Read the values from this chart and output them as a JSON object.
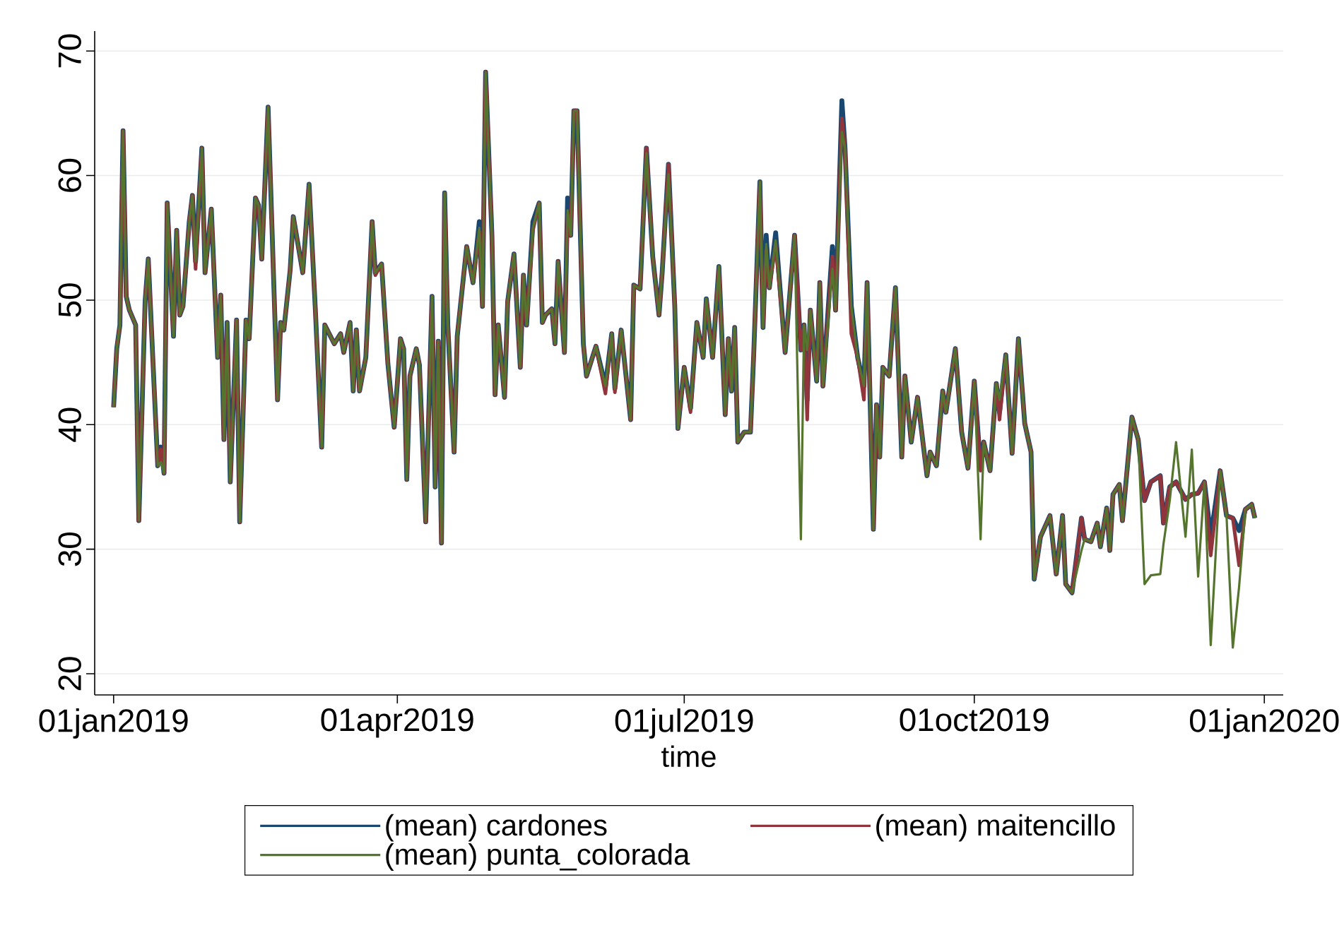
{
  "chart_data": {
    "type": "line",
    "xlabel": "time",
    "xlim": [
      "2018-12-26",
      "2020-01-07"
    ],
    "ylim": [
      18.3,
      71.6
    ],
    "xticks": [
      {
        "value": "2019-01-01",
        "label": "01jan2019"
      },
      {
        "value": "2019-04-01",
        "label": "01apr2019"
      },
      {
        "value": "2019-07-01",
        "label": "01jul2019"
      },
      {
        "value": "2019-10-01",
        "label": "01oct2019"
      },
      {
        "value": "2020-01-01",
        "label": "01jan2020"
      }
    ],
    "yticks": [
      20,
      30,
      40,
      50,
      60,
      70
    ],
    "grid": "y",
    "legend": "bottom",
    "x": [
      "2019-01-01",
      "2019-01-02",
      "2019-01-03",
      "2019-01-04",
      "2019-01-05",
      "2019-01-06",
      "2019-01-08",
      "2019-01-09",
      "2019-01-11",
      "2019-01-12",
      "2019-01-15",
      "2019-01-16",
      "2019-01-17",
      "2019-01-18",
      "2019-01-20",
      "2019-01-21",
      "2019-01-22",
      "2019-01-23",
      "2019-01-25",
      "2019-01-26",
      "2019-01-27",
      "2019-01-29",
      "2019-01-30",
      "2019-02-01",
      "2019-02-03",
      "2019-02-04",
      "2019-02-05",
      "2019-02-06",
      "2019-02-07",
      "2019-02-09",
      "2019-02-10",
      "2019-02-12",
      "2019-02-13",
      "2019-02-15",
      "2019-02-16",
      "2019-02-17",
      "2019-02-19",
      "2019-02-22",
      "2019-02-23",
      "2019-02-24",
      "2019-02-26",
      "2019-02-27",
      "2019-03-02",
      "2019-03-04",
      "2019-03-06",
      "2019-03-08",
      "2019-03-09",
      "2019-03-12",
      "2019-03-14",
      "2019-03-15",
      "2019-03-17",
      "2019-03-18",
      "2019-03-19",
      "2019-03-20",
      "2019-03-22",
      "2019-03-24",
      "2019-03-25",
      "2019-03-27",
      "2019-03-29",
      "2019-03-31",
      "2019-04-02",
      "2019-04-03",
      "2019-04-04",
      "2019-04-05",
      "2019-04-07",
      "2019-04-08",
      "2019-04-10",
      "2019-04-12",
      "2019-04-13",
      "2019-04-14",
      "2019-04-15",
      "2019-04-16",
      "2019-04-17",
      "2019-04-19",
      "2019-04-20",
      "2019-04-23",
      "2019-04-25",
      "2019-04-27",
      "2019-04-28",
      "2019-04-29",
      "2019-05-01",
      "2019-05-02",
      "2019-05-03",
      "2019-05-05",
      "2019-05-06",
      "2019-05-08",
      "2019-05-10",
      "2019-05-11",
      "2019-05-12",
      "2019-05-14",
      "2019-05-16",
      "2019-05-17",
      "2019-05-18",
      "2019-05-20",
      "2019-05-21",
      "2019-05-22",
      "2019-05-24",
      "2019-05-25",
      "2019-05-26",
      "2019-05-27",
      "2019-05-28",
      "2019-05-30",
      "2019-05-31",
      "2019-06-03",
      "2019-06-06",
      "2019-06-08",
      "2019-06-09",
      "2019-06-11",
      "2019-06-14",
      "2019-06-15",
      "2019-06-17",
      "2019-06-19",
      "2019-06-21",
      "2019-06-23",
      "2019-06-24",
      "2019-06-26",
      "2019-06-28",
      "2019-06-29",
      "2019-07-01",
      "2019-07-03",
      "2019-07-05",
      "2019-07-07",
      "2019-07-08",
      "2019-07-10",
      "2019-07-12",
      "2019-07-14",
      "2019-07-15",
      "2019-07-16",
      "2019-07-17",
      "2019-07-18",
      "2019-07-20",
      "2019-07-22",
      "2019-07-23",
      "2019-07-25",
      "2019-07-26",
      "2019-07-27",
      "2019-07-28",
      "2019-07-30",
      "2019-08-02",
      "2019-08-05",
      "2019-08-07",
      "2019-08-08",
      "2019-08-09",
      "2019-08-10",
      "2019-08-12",
      "2019-08-13",
      "2019-08-14",
      "2019-08-17",
      "2019-08-18",
      "2019-08-20",
      "2019-08-21",
      "2019-08-23",
      "2019-08-25",
      "2019-08-27",
      "2019-08-28",
      "2019-08-30",
      "2019-08-31",
      "2019-09-01",
      "2019-09-02",
      "2019-09-04",
      "2019-09-06",
      "2019-09-08",
      "2019-09-09",
      "2019-09-11",
      "2019-09-13",
      "2019-09-16",
      "2019-09-17",
      "2019-09-19",
      "2019-09-21",
      "2019-09-22",
      "2019-09-25",
      "2019-09-27",
      "2019-09-29",
      "2019-10-01",
      "2019-10-03",
      "2019-10-04",
      "2019-10-06",
      "2019-10-08",
      "2019-10-09",
      "2019-10-11",
      "2019-10-13",
      "2019-10-15",
      "2019-10-17",
      "2019-10-19",
      "2019-10-20",
      "2019-10-22",
      "2019-10-25",
      "2019-10-27",
      "2019-10-29",
      "2019-10-30",
      "2019-11-01",
      "2019-11-04",
      "2019-11-05",
      "2019-11-07",
      "2019-11-09",
      "2019-11-10",
      "2019-11-12",
      "2019-11-13",
      "2019-11-14",
      "2019-11-16",
      "2019-11-17",
      "2019-11-20",
      "2019-11-22",
      "2019-11-24",
      "2019-11-26",
      "2019-11-29",
      "2019-11-30",
      "2019-12-02",
      "2019-12-04",
      "2019-12-07",
      "2019-12-09",
      "2019-12-11",
      "2019-12-13",
      "2019-12-15",
      "2019-12-18",
      "2019-12-20",
      "2019-12-22",
      "2019-12-24",
      "2019-12-26",
      "2019-12-28",
      "2019-12-29"
    ],
    "series": [
      {
        "name": "(mean) cardones",
        "color": "#1a476f",
        "values": [
          41.4,
          46.1,
          48,
          63.6,
          50.3,
          49.2,
          48,
          32.3,
          49.9,
          53.3,
          36.7,
          38.2,
          36.1,
          57.8,
          47.1,
          55.6,
          48.8,
          49.5,
          56.3,
          58.4,
          53.1,
          62.2,
          52.2,
          57.3,
          45.4,
          50.4,
          38.8,
          48.2,
          35.4,
          48.4,
          32.2,
          48.4,
          46.9,
          58.2,
          57.6,
          53.3,
          65.5,
          42,
          48.2,
          47.6,
          52.4,
          56.7,
          52.2,
          59.3,
          49.2,
          38.2,
          48,
          46.5,
          47.3,
          45.8,
          48.2,
          42.7,
          47.6,
          42.7,
          45.4,
          56.3,
          52.2,
          52.9,
          44.9,
          39.8,
          46.9,
          46.1,
          35.6,
          43.9,
          46.1,
          44.8,
          32.2,
          50.3,
          35,
          46.7,
          30.5,
          58.6,
          48,
          37.8,
          47.1,
          54.3,
          51.4,
          56.3,
          49.5,
          68.3,
          55.2,
          42.4,
          48,
          42.2,
          49.9,
          53.7,
          44.6,
          52,
          48,
          56.3,
          57.8,
          48.2,
          48.8,
          49.3,
          46.5,
          53.1,
          45.8,
          58.2,
          55.2,
          65.2,
          65.2,
          46.5,
          43.9,
          46.3,
          43.1,
          47.3,
          42.9,
          47.6,
          40.4,
          51.2,
          50.9,
          62.2,
          53.5,
          48.8,
          52.2,
          60.9,
          49.5,
          39.7,
          44.6,
          41.3,
          48.2,
          45.4,
          50.1,
          45.4,
          52.7,
          40.8,
          46.9,
          42.7,
          47.8,
          38.6,
          39.4,
          39.4,
          45.4,
          59.5,
          47.8,
          55.2,
          51,
          55.4,
          45.8,
          55.2,
          46,
          48,
          42,
          49.2,
          43.5,
          51.4,
          43.1,
          54.3,
          49.2,
          66,
          62.2,
          49.5,
          45.4,
          43.1,
          51.4,
          31.6,
          41.6,
          37.4,
          44.6,
          43.9,
          51,
          37.4,
          43.9,
          38.6,
          42.2,
          35.9,
          37.8,
          36.7,
          42.7,
          41,
          46.1,
          39.4,
          36.5,
          43.5,
          36.5,
          38.6,
          36.3,
          43.3,
          41,
          45.6,
          37.7,
          46.9,
          40.1,
          37.8,
          27.6,
          31,
          32.7,
          28,
          32.7,
          27.2,
          26.5,
          32.5,
          30.8,
          30.6,
          32.1,
          30.2,
          33.3,
          29.9,
          34.4,
          35.2,
          32.3,
          40.6,
          38.8,
          33.9,
          35.4,
          35.9,
          32.1,
          35,
          35.4,
          34,
          34.4,
          34.5,
          35.4,
          31,
          36.3,
          32.7,
          32.5,
          31.5,
          33.2,
          33.6,
          32.5
        ]
      },
      {
        "name": "(mean) maitencillo",
        "color": "#90353b",
        "values": [
          41.4,
          46.1,
          48,
          63.6,
          50.3,
          49.2,
          48,
          32.3,
          49.9,
          53.3,
          36.7,
          38,
          36.1,
          57.8,
          47.1,
          55.6,
          48.8,
          49.5,
          56.3,
          58.4,
          52.5,
          62.2,
          52.2,
          57.3,
          45.4,
          50.4,
          38.8,
          48.2,
          35.4,
          48.4,
          32.2,
          48.4,
          46.9,
          58.2,
          57.6,
          53.3,
          65.5,
          42,
          48.2,
          47.6,
          52.4,
          56.7,
          52.2,
          59.3,
          49.2,
          38.2,
          48,
          46.5,
          47.3,
          45.8,
          48.2,
          42.7,
          47.6,
          42.7,
          45.4,
          56.3,
          52,
          52.9,
          44.9,
          39.8,
          46.9,
          46.1,
          35.6,
          43.9,
          46.1,
          44.8,
          32.2,
          50.3,
          35,
          46.7,
          30.5,
          58.6,
          48,
          37.8,
          47.1,
          54.3,
          51.4,
          55.5,
          49.5,
          68.3,
          55.2,
          42.4,
          48,
          42.2,
          49.9,
          53.7,
          44.6,
          52,
          48,
          55.6,
          57.8,
          48.2,
          48.8,
          49.3,
          46.5,
          53.1,
          45.8,
          56.8,
          55.2,
          65.2,
          65.2,
          46.5,
          43.9,
          46.3,
          42.5,
          47.3,
          42.6,
          47.6,
          40.4,
          51.2,
          50.9,
          62.2,
          53.5,
          48.8,
          52.2,
          60.9,
          49.5,
          39.7,
          44.6,
          41,
          48.2,
          45.4,
          50.1,
          45.4,
          52.7,
          40.8,
          46.9,
          42.7,
          47.8,
          38.6,
          39.4,
          39.4,
          45.4,
          59.5,
          47.8,
          54,
          51,
          54.5,
          45.8,
          55.2,
          46,
          48,
          40.4,
          49.2,
          43.5,
          51.4,
          43.1,
          53.5,
          49.2,
          64.6,
          62.2,
          47.3,
          45.4,
          42,
          51.4,
          31.6,
          41.6,
          37.4,
          44.6,
          43.9,
          51,
          37.4,
          43.9,
          38.6,
          42.2,
          35.9,
          37.8,
          36.7,
          42.7,
          41,
          46.1,
          39.4,
          36.5,
          43.5,
          36.3,
          38.6,
          36.3,
          43.3,
          40.4,
          45.6,
          37.7,
          46.9,
          40.1,
          37.8,
          27.6,
          31,
          32.7,
          28,
          32.7,
          27.2,
          26.5,
          32.5,
          30.8,
          30.6,
          32.1,
          30.2,
          33.3,
          29.9,
          34.4,
          35.2,
          32.3,
          40.6,
          38.8,
          33.9,
          35.4,
          35.9,
          32.1,
          35,
          35.4,
          34,
          34.4,
          34.5,
          35.4,
          29.5,
          36.3,
          32.7,
          32.5,
          28.7,
          33.2,
          33.6,
          32.5
        ]
      },
      {
        "name": "(mean) punta_colorada",
        "color": "#55752f",
        "values": [
          41.4,
          46.1,
          48,
          63.6,
          50.3,
          49.2,
          48,
          32.3,
          49.9,
          53.3,
          36.7,
          37,
          36.1,
          57.8,
          47.1,
          55.6,
          48.8,
          49.5,
          56.3,
          58.4,
          53.1,
          62.2,
          52.2,
          57.3,
          45.4,
          50.4,
          38.8,
          48.2,
          35.4,
          48.4,
          32.2,
          48.4,
          46.9,
          58.2,
          57.6,
          53.3,
          65.5,
          42,
          48.2,
          47.6,
          52.4,
          56.7,
          52.2,
          59.3,
          49.2,
          38.2,
          48,
          46.5,
          47.3,
          45.8,
          48.2,
          42.7,
          47.6,
          42.7,
          45.4,
          56.3,
          52.2,
          52.9,
          44.9,
          39.8,
          46.9,
          46.1,
          35.6,
          43.9,
          46.1,
          44.8,
          32.2,
          50.3,
          35,
          46.7,
          30.5,
          58.6,
          48,
          37.8,
          47.1,
          54.3,
          51.4,
          55.8,
          49.5,
          68.3,
          55.2,
          42.4,
          48,
          42.2,
          49.9,
          53.7,
          44.6,
          52,
          48,
          55.8,
          57.8,
          48.2,
          48.8,
          49.3,
          46.5,
          53.1,
          45.8,
          57.2,
          55.2,
          65.2,
          65.2,
          46.5,
          43.9,
          46.3,
          43.1,
          47.3,
          42.9,
          47.6,
          40.4,
          51.2,
          50.9,
          61.8,
          53.5,
          48.8,
          52.2,
          60.1,
          49.5,
          39.7,
          44.6,
          41.3,
          48.2,
          45.4,
          50.1,
          45.4,
          52.7,
          40.8,
          46.9,
          42.7,
          47.8,
          38.6,
          39.4,
          39.4,
          45.4,
          59.5,
          47.8,
          54.5,
          51,
          54.8,
          45.8,
          55.2,
          30.8,
          48,
          46,
          49.2,
          43.5,
          51.4,
          43.1,
          52.5,
          49.2,
          63.5,
          62.2,
          49.5,
          45.4,
          43.1,
          51.4,
          31.6,
          41.6,
          37.4,
          44.6,
          43.9,
          51,
          37.4,
          43.9,
          38.6,
          42.2,
          35.9,
          37.8,
          36.7,
          42.7,
          41,
          46.1,
          39.4,
          36.5,
          43.5,
          30.8,
          38.6,
          36.3,
          43.3,
          42,
          45.6,
          37.7,
          46.9,
          40.1,
          37.8,
          27.6,
          31,
          32.7,
          28,
          32.7,
          27.2,
          26.5,
          29.9,
          30.8,
          30.6,
          32.1,
          30.2,
          33.3,
          29.9,
          34.4,
          35.2,
          32.3,
          40.6,
          38.8,
          27.2,
          27.9,
          28,
          30.4,
          33.9,
          38.6,
          31,
          38,
          27.8,
          35.4,
          22.3,
          36.3,
          32.7,
          22.1,
          27,
          33.2,
          33.6,
          32.5
        ]
      }
    ]
  }
}
